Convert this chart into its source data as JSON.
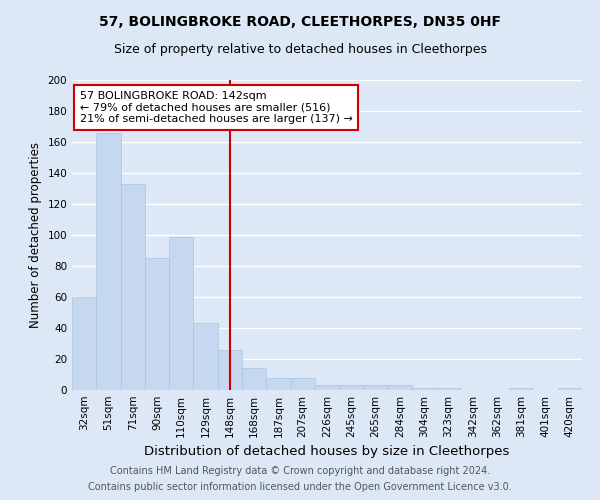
{
  "title": "57, BOLINGBROKE ROAD, CLEETHORPES, DN35 0HF",
  "subtitle": "Size of property relative to detached houses in Cleethorpes",
  "xlabel": "Distribution of detached houses by size in Cleethorpes",
  "ylabel": "Number of detached properties",
  "categories": [
    "32sqm",
    "51sqm",
    "71sqm",
    "90sqm",
    "110sqm",
    "129sqm",
    "148sqm",
    "168sqm",
    "187sqm",
    "207sqm",
    "226sqm",
    "245sqm",
    "265sqm",
    "284sqm",
    "304sqm",
    "323sqm",
    "342sqm",
    "362sqm",
    "381sqm",
    "401sqm",
    "420sqm"
  ],
  "values": [
    60,
    166,
    133,
    85,
    99,
    43,
    26,
    14,
    8,
    8,
    3,
    3,
    3,
    3,
    1,
    1,
    0,
    0,
    1,
    0,
    1
  ],
  "bar_color": "#c5d8f0",
  "bar_edge_color": "#a8c4e0",
  "vline_x": 6,
  "annotation_title": "57 BOLINGBROKE ROAD: 142sqm",
  "annotation_line1": "← 79% of detached houses are smaller (516)",
  "annotation_line2": "21% of semi-detached houses are larger (137) →",
  "annotation_box_color": "#ffffff",
  "annotation_box_edge_color": "#cc0000",
  "vline_color": "#cc0000",
  "footnote1": "Contains HM Land Registry data © Crown copyright and database right 2024.",
  "footnote2": "Contains public sector information licensed under the Open Government Licence v3.0.",
  "ylim": [
    0,
    200
  ],
  "yticks": [
    0,
    20,
    40,
    60,
    80,
    100,
    120,
    140,
    160,
    180,
    200
  ],
  "background_color": "#dce8f5",
  "plot_background_color": "#dce8f5",
  "grid_color": "#ffffff",
  "title_fontsize": 10,
  "subtitle_fontsize": 9,
  "xlabel_fontsize": 9.5,
  "ylabel_fontsize": 8.5,
  "tick_fontsize": 7.5,
  "annotation_fontsize": 8,
  "footnote_fontsize": 7
}
